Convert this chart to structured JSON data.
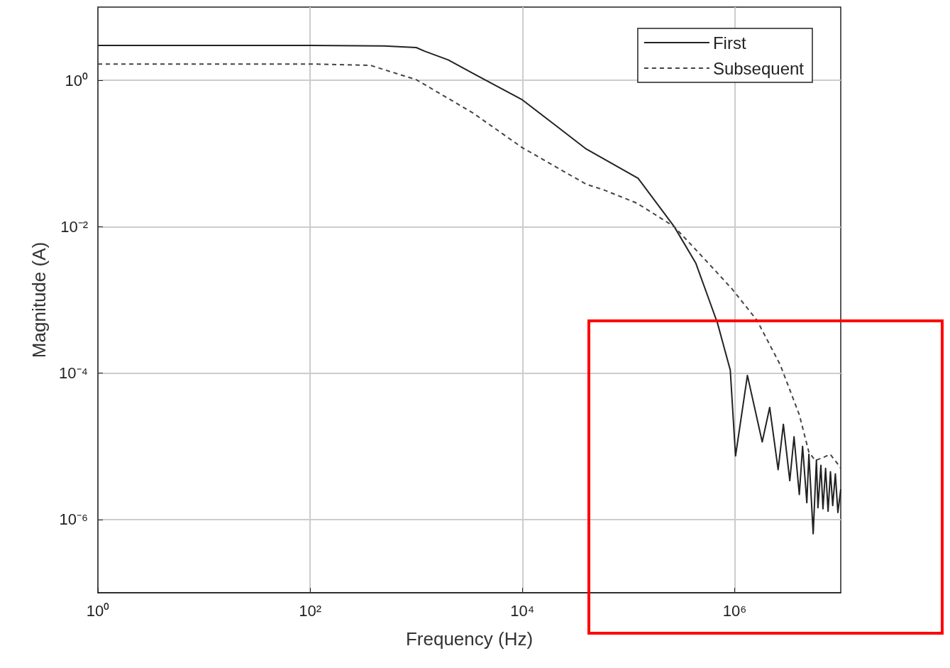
{
  "chart_data": {
    "type": "line",
    "xlabel": "Frequency (Hz)",
    "ylabel": "Magnitude (A)",
    "log": "xy",
    "xlim": [
      1,
      10000000
    ],
    "ylim": [
      1e-07,
      10
    ],
    "xticks": [
      {
        "value": 1,
        "label": "10⁰"
      },
      {
        "value": 100,
        "label": "10²"
      },
      {
        "value": 10000,
        "label": "10⁴"
      },
      {
        "value": 1000000,
        "label": "10⁶"
      }
    ],
    "yticks": [
      {
        "value": 1e-06,
        "label": "10⁻⁶"
      },
      {
        "value": 0.0001,
        "label": "10⁻⁴"
      },
      {
        "value": 0.01,
        "label": "10⁻²"
      },
      {
        "value": 1,
        "label": "10⁰"
      }
    ],
    "grid": true,
    "legend": "top right",
    "marker": "none",
    "series": [
      {
        "name": "First",
        "color": "#222222",
        "line_style": "solid",
        "x": [
          1,
          100,
          500,
          1000,
          1200,
          2000,
          3400,
          10000,
          20000,
          40000,
          123000,
          270000,
          430000,
          575000,
          690000,
          910000,
          1020000,
          1320000,
          1820000,
          2140000,
          2570000,
          2880000,
          3310000,
          3630000,
          4070000,
          4370000,
          4790000,
          5010000,
          5500000,
          5900000,
          6100000,
          6500000,
          6800000,
          7200000,
          7600000,
          8000000,
          8400000,
          8900000,
          9400000,
          10000000
        ],
        "values": [
          3,
          3,
          2.95,
          2.8,
          2.5,
          1.9,
          1.25,
          0.54,
          0.25,
          0.115,
          0.046,
          0.01,
          0.0032,
          0.001,
          0.00048,
          0.00011,
          7.4e-06,
          9.3e-05,
          1.15e-05,
          3.4e-05,
          4.8e-06,
          2e-05,
          3.4e-06,
          1.35e-05,
          2.2e-06,
          1e-05,
          1.7e-06,
          7.8e-06,
          6.4e-07,
          6.5e-06,
          1.45e-06,
          5.5e-06,
          1.4e-06,
          5e-06,
          1.3e-06,
          4.5e-06,
          1.55e-06,
          4.2e-06,
          1.25e-06,
          2.6e-06
        ]
      },
      {
        "name": "Subsequent",
        "color": "#444444",
        "line_style": "dashed",
        "x": [
          1,
          100,
          370,
          1000,
          3400,
          10000,
          40000,
          58000,
          120000,
          270000,
          575000,
          950000,
          1620000,
          2690000,
          4070000,
          5010000,
          5750000,
          7080000,
          7940000,
          9330000,
          10000000
        ],
        "values": [
          1.67,
          1.67,
          1.6,
          1.02,
          0.36,
          0.12,
          0.038,
          0.032,
          0.021,
          0.01,
          0.0031,
          0.0014,
          0.00053,
          0.00013,
          2.7e-05,
          8.3e-06,
          6.4e-06,
          7.2e-06,
          7.8e-06,
          5.8e-06,
          5e-06
        ]
      }
    ]
  }
}
